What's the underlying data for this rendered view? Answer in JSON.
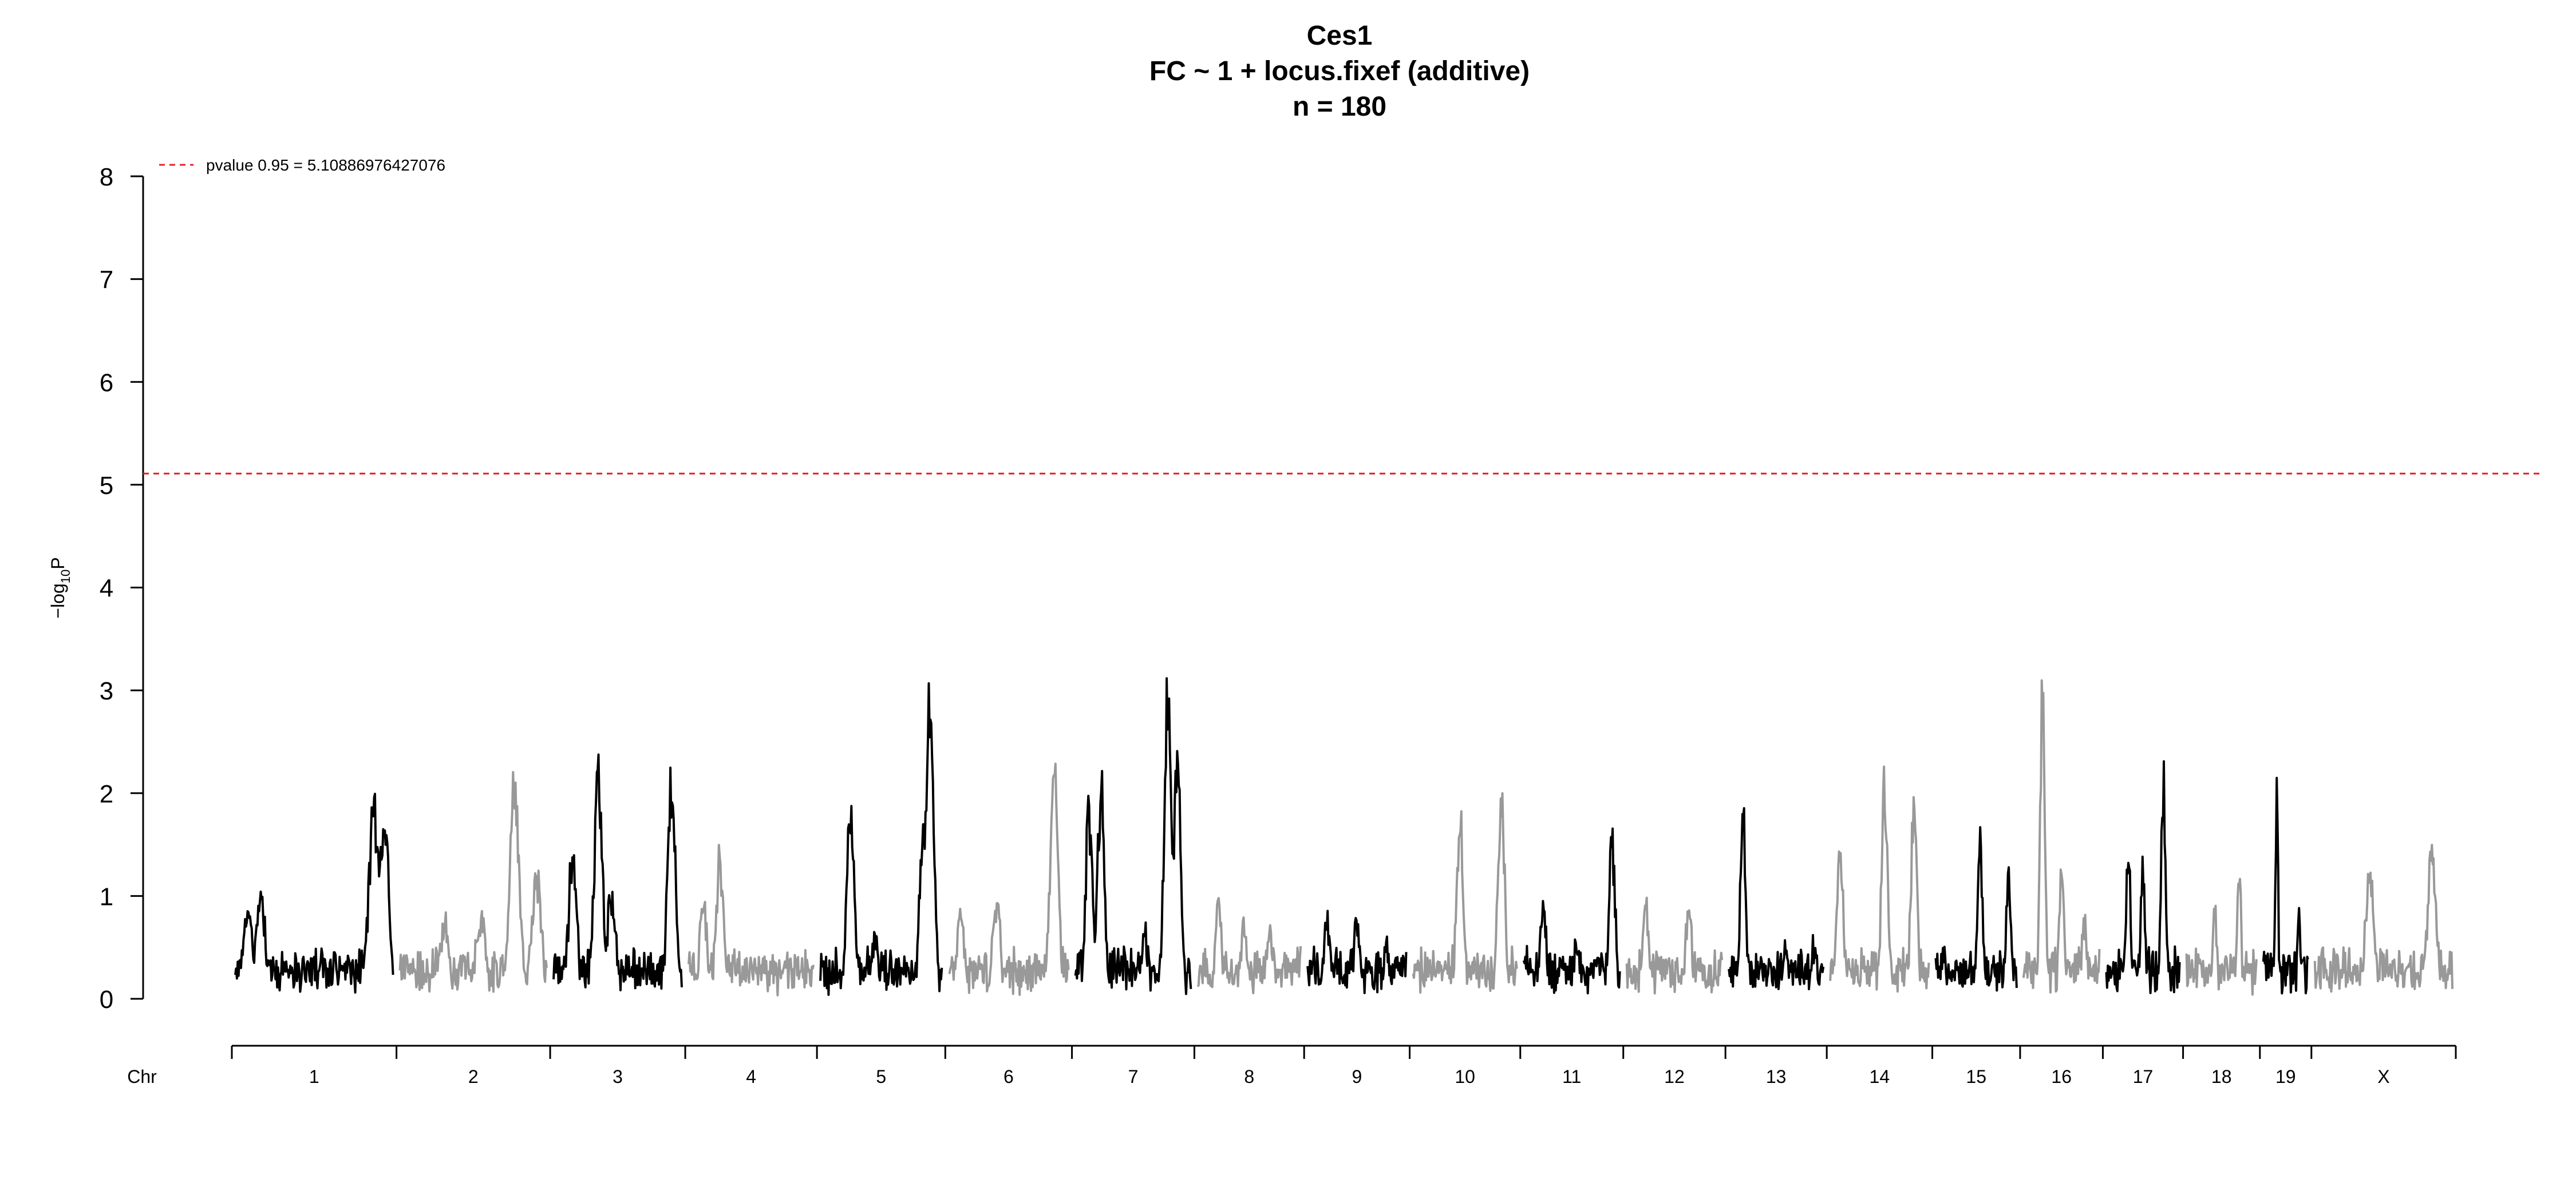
{
  "chart_data": {
    "type": "line",
    "title": "Ces1",
    "subtitle": "FC ~ 1 + locus.fixef (additive)",
    "subtitle2": "n = 180",
    "ylabel_main": "−log",
    "ylabel_sub": "10",
    "ylabel_tail": "P",
    "xlabel": "Chr",
    "ylim": [
      0,
      8
    ],
    "yticks": [
      "0",
      "1",
      "2",
      "3",
      "4",
      "5",
      "6",
      "7",
      "8"
    ],
    "threshold": {
      "label": "pvalue 0.95 = 5.10886976427076",
      "value": 5.10886976427076,
      "color": "#e8202a"
    },
    "colors": {
      "odd": "#000000",
      "even": "#999999"
    },
    "chromosomes": [
      {
        "name": "1",
        "length": 195,
        "peaks": [
          [
            0.08,
            0.9
          ],
          [
            0.16,
            1.1
          ],
          [
            0.55,
            0.4
          ],
          [
            0.88,
            2.05
          ],
          [
            0.94,
            1.9
          ]
        ]
      },
      {
        "name": "2",
        "length": 182,
        "peaks": [
          [
            0.3,
            0.8
          ],
          [
            0.55,
            0.9
          ],
          [
            0.78,
            2.35
          ],
          [
            0.93,
            1.4
          ]
        ]
      },
      {
        "name": "3",
        "length": 160,
        "peaks": [
          [
            0.15,
            1.6
          ],
          [
            0.35,
            2.35
          ],
          [
            0.45,
            1.2
          ],
          [
            0.92,
            2.3
          ]
        ]
      },
      {
        "name": "4",
        "length": 156,
        "peaks": [
          [
            0.12,
            1.0
          ],
          [
            0.25,
            1.5
          ],
          [
            0.6,
            0.4
          ]
        ]
      },
      {
        "name": "5",
        "length": 152,
        "peaks": [
          [
            0.25,
            2.1
          ],
          [
            0.45,
            0.6
          ],
          [
            0.85,
            1.9
          ],
          [
            0.9,
            3.4
          ]
        ]
      },
      {
        "name": "6",
        "length": 150,
        "peaks": [
          [
            0.1,
            1.0
          ],
          [
            0.4,
            1.05
          ],
          [
            0.88,
            2.65
          ]
        ]
      },
      {
        "name": "7",
        "length": 145,
        "peaks": [
          [
            0.12,
            2.05
          ],
          [
            0.22,
            2.25
          ],
          [
            0.6,
            0.7
          ],
          [
            0.8,
            3.3
          ],
          [
            0.88,
            2.5
          ]
        ]
      },
      {
        "name": "8",
        "length": 130,
        "peaks": [
          [
            0.2,
            1.0
          ],
          [
            0.45,
            0.75
          ],
          [
            0.7,
            0.75
          ]
        ]
      },
      {
        "name": "9",
        "length": 125,
        "peaks": [
          [
            0.2,
            0.85
          ],
          [
            0.5,
            0.85
          ],
          [
            0.8,
            0.6
          ]
        ]
      },
      {
        "name": "10",
        "length": 131,
        "peaks": [
          [
            0.45,
            2.05
          ],
          [
            0.85,
            2.2
          ]
        ]
      },
      {
        "name": "11",
        "length": 122,
        "peaks": [
          [
            0.2,
            1.05
          ],
          [
            0.55,
            0.6
          ],
          [
            0.92,
            1.75
          ]
        ]
      },
      {
        "name": "12",
        "length": 121,
        "peaks": [
          [
            0.2,
            1.0
          ],
          [
            0.65,
            0.95
          ]
        ]
      },
      {
        "name": "13",
        "length": 120,
        "peaks": [
          [
            0.15,
            1.9
          ],
          [
            0.6,
            0.6
          ],
          [
            0.9,
            0.6
          ]
        ]
      },
      {
        "name": "14",
        "length": 125,
        "peaks": [
          [
            0.1,
            1.75
          ],
          [
            0.55,
            2.3
          ],
          [
            0.85,
            2.05
          ]
        ]
      },
      {
        "name": "15",
        "length": 104,
        "peaks": [
          [
            0.1,
            0.45
          ],
          [
            0.55,
            1.7
          ],
          [
            0.9,
            1.4
          ]
        ]
      },
      {
        "name": "16",
        "length": 98,
        "peaks": [
          [
            0.25,
            3.5
          ],
          [
            0.5,
            1.5
          ],
          [
            0.8,
            0.9
          ]
        ]
      },
      {
        "name": "17",
        "length": 95,
        "peaks": [
          [
            0.3,
            1.55
          ],
          [
            0.5,
            1.35
          ],
          [
            0.78,
            2.25
          ]
        ]
      },
      {
        "name": "18",
        "length": 91,
        "peaks": [
          [
            0.4,
            0.9
          ],
          [
            0.75,
            1.35
          ]
        ]
      },
      {
        "name": "19",
        "length": 61,
        "peaks": [
          [
            0.3,
            2.25
          ],
          [
            0.8,
            0.9
          ]
        ]
      },
      {
        "name": "X",
        "length": 171,
        "peaks": [
          [
            0.4,
            1.4
          ],
          [
            0.85,
            1.6
          ]
        ]
      }
    ]
  }
}
